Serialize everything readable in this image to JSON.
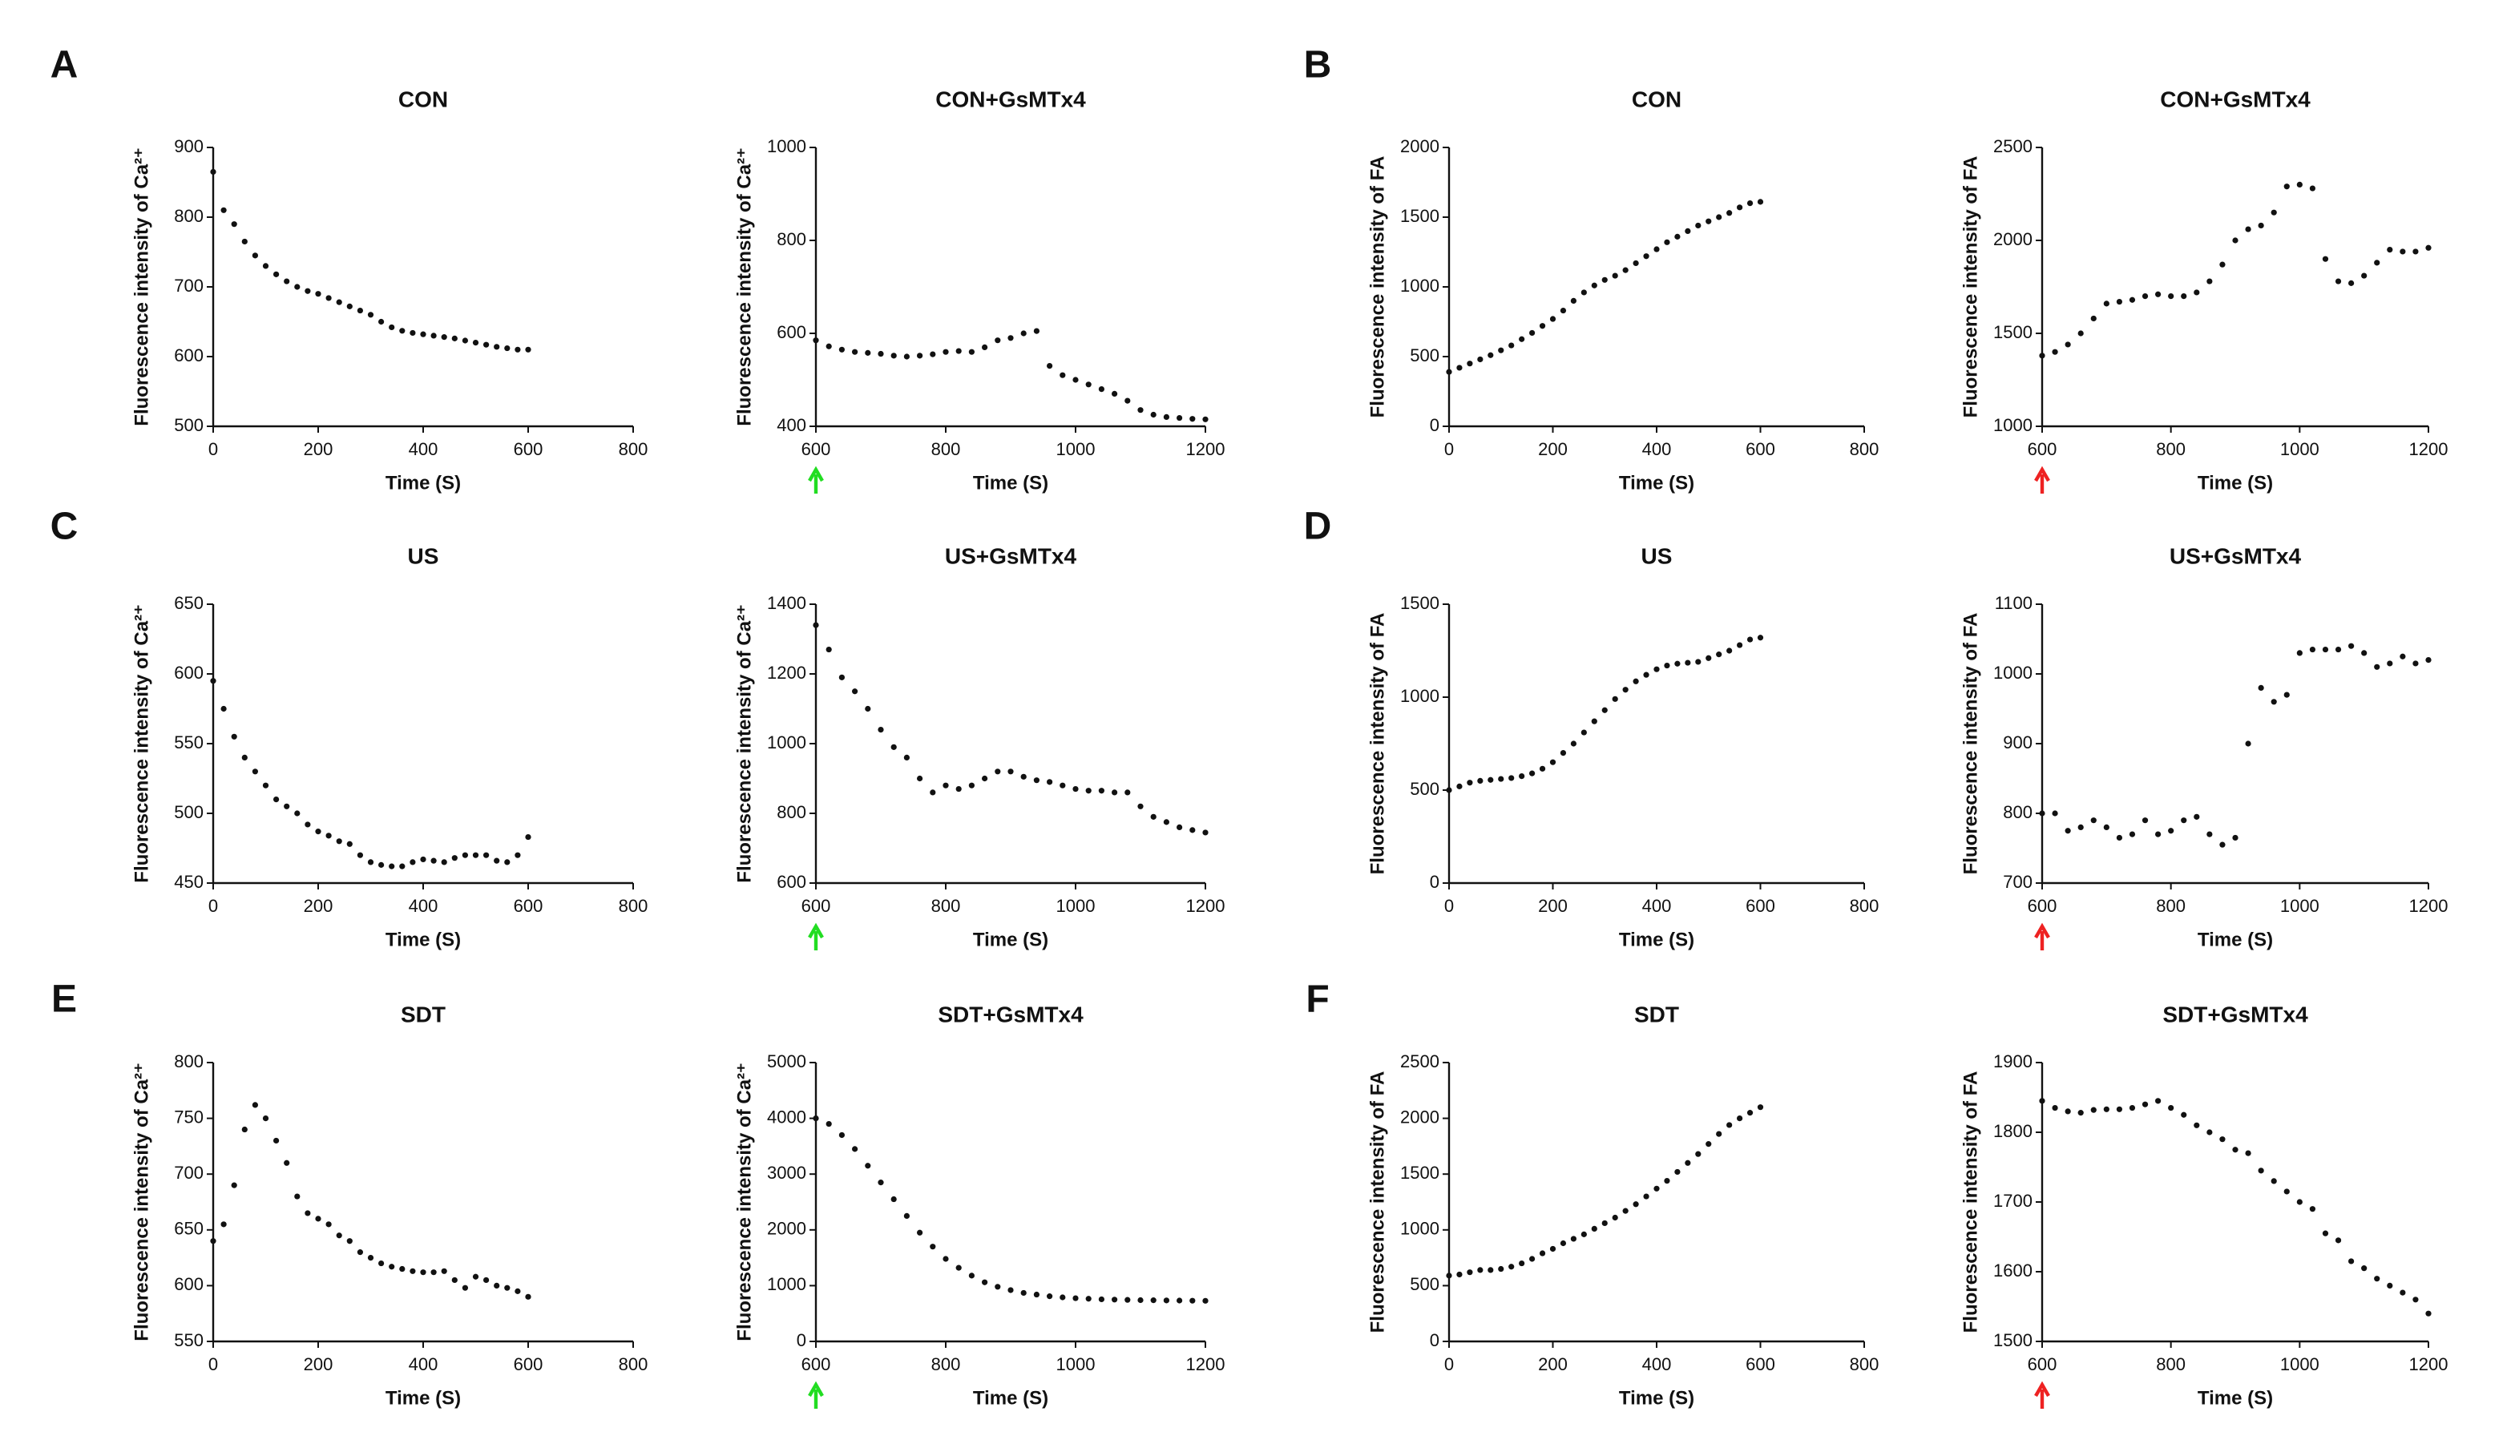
{
  "panel_labels": [
    "A",
    "B",
    "C",
    "D",
    "E",
    "F"
  ],
  "chart_data": [
    {
      "type": "scatter",
      "title": "CON",
      "xlabel": "Time (S)",
      "ylabel": "Fluorescence intensity of Ca²⁺",
      "color": "#111111",
      "xlim": [
        0,
        800
      ],
      "xticks": [
        0,
        200,
        400,
        600,
        800
      ],
      "ylim": [
        500,
        900
      ],
      "yticks": [
        500,
        600,
        700,
        800,
        900
      ],
      "x": [
        0,
        20,
        40,
        60,
        80,
        100,
        120,
        140,
        160,
        180,
        200,
        220,
        240,
        260,
        280,
        300,
        320,
        340,
        360,
        380,
        400,
        420,
        440,
        460,
        480,
        500,
        520,
        540,
        560,
        580,
        600
      ],
      "values": [
        865,
        810,
        790,
        765,
        745,
        730,
        718,
        708,
        700,
        694,
        690,
        684,
        678,
        672,
        666,
        660,
        650,
        642,
        637,
        634,
        632,
        630,
        628,
        626,
        623,
        620,
        617,
        614,
        612,
        610,
        610
      ]
    },
    {
      "type": "scatter",
      "title": "CON+GsMTx4",
      "xlabel": "Time (S)",
      "ylabel": "Fluorescence intensity of Ca²⁺",
      "color": "#111111",
      "arrow_color": "#22dd22",
      "xlim": [
        600,
        1200
      ],
      "xticks": [
        600,
        800,
        1000,
        1200
      ],
      "ylim": [
        400,
        1000
      ],
      "yticks": [
        400,
        600,
        800,
        1000
      ],
      "x": [
        600,
        620,
        640,
        660,
        680,
        700,
        720,
        740,
        760,
        780,
        800,
        820,
        840,
        860,
        880,
        900,
        920,
        940,
        960,
        980,
        1000,
        1020,
        1040,
        1060,
        1080,
        1100,
        1120,
        1140,
        1160,
        1180,
        1200
      ],
      "values": [
        585,
        572,
        565,
        560,
        558,
        556,
        552,
        550,
        552,
        555,
        560,
        562,
        560,
        570,
        585,
        590,
        600,
        605,
        530,
        510,
        500,
        490,
        480,
        470,
        455,
        435,
        425,
        420,
        418,
        416,
        415
      ]
    },
    {
      "type": "scatter",
      "title": "CON",
      "xlabel": "Time (S)",
      "ylabel": "Fluorescence intensity of FA",
      "color": "#111111",
      "xlim": [
        0,
        800
      ],
      "xticks": [
        0,
        200,
        400,
        600,
        800
      ],
      "ylim": [
        0,
        2000
      ],
      "yticks": [
        0,
        500,
        1000,
        1500,
        2000
      ],
      "x": [
        0,
        20,
        40,
        60,
        80,
        100,
        120,
        140,
        160,
        180,
        200,
        220,
        240,
        260,
        280,
        300,
        320,
        340,
        360,
        380,
        400,
        420,
        440,
        460,
        480,
        500,
        520,
        540,
        560,
        580,
        600
      ],
      "values": [
        390,
        420,
        450,
        480,
        510,
        545,
        580,
        625,
        670,
        720,
        770,
        830,
        900,
        960,
        1010,
        1050,
        1080,
        1120,
        1170,
        1220,
        1270,
        1320,
        1360,
        1400,
        1440,
        1470,
        1500,
        1530,
        1570,
        1600,
        1610
      ]
    },
    {
      "type": "scatter",
      "title": "CON+GsMTx4",
      "xlabel": "Time (S)",
      "ylabel": "Fluorescence intensity of FA",
      "color": "#111111",
      "arrow_color": "#ee2222",
      "xlim": [
        600,
        1200
      ],
      "xticks": [
        600,
        800,
        1000,
        1200
      ],
      "ylim": [
        1000,
        2500
      ],
      "yticks": [
        1000,
        1500,
        2000,
        2500
      ],
      "x": [
        600,
        620,
        640,
        660,
        680,
        700,
        720,
        740,
        760,
        780,
        800,
        820,
        840,
        860,
        880,
        900,
        920,
        940,
        960,
        980,
        1000,
        1020,
        1040,
        1060,
        1080,
        1100,
        1120,
        1140,
        1160,
        1180,
        1200
      ],
      "values": [
        1380,
        1400,
        1440,
        1500,
        1580,
        1660,
        1670,
        1680,
        1700,
        1710,
        1700,
        1700,
        1720,
        1780,
        1870,
        2000,
        2060,
        2080,
        2150,
        2290,
        2300,
        2280,
        1900,
        1780,
        1770,
        1810,
        1880,
        1950,
        1940,
        1940,
        1960
      ]
    },
    {
      "type": "scatter",
      "title": "US",
      "xlabel": "Time (S)",
      "ylabel": "Fluorescence intensity of Ca²⁺",
      "color": "#111111",
      "xlim": [
        0,
        800
      ],
      "xticks": [
        0,
        200,
        400,
        600,
        800
      ],
      "ylim": [
        450,
        650
      ],
      "yticks": [
        450,
        500,
        550,
        600,
        650
      ],
      "x": [
        0,
        20,
        40,
        60,
        80,
        100,
        120,
        140,
        160,
        180,
        200,
        220,
        240,
        260,
        280,
        300,
        320,
        340,
        360,
        380,
        400,
        420,
        440,
        460,
        480,
        500,
        520,
        540,
        560,
        580,
        600
      ],
      "values": [
        595,
        575,
        555,
        540,
        530,
        520,
        510,
        505,
        500,
        492,
        487,
        484,
        480,
        478,
        470,
        465,
        463,
        462,
        462,
        465,
        467,
        466,
        465,
        468,
        470,
        470,
        470,
        466,
        465,
        470,
        483
      ]
    },
    {
      "type": "scatter",
      "title": "US+GsMTx4",
      "xlabel": "Time (S)",
      "ylabel": "Fluorescence intensity of Ca²⁺",
      "color": "#111111",
      "arrow_color": "#22dd22",
      "xlim": [
        600,
        1200
      ],
      "xticks": [
        600,
        800,
        1000,
        1200
      ],
      "ylim": [
        600,
        1400
      ],
      "yticks": [
        600,
        800,
        1000,
        1200,
        1400
      ],
      "x": [
        600,
        620,
        640,
        660,
        680,
        700,
        720,
        740,
        760,
        780,
        800,
        820,
        840,
        860,
        880,
        900,
        920,
        940,
        960,
        980,
        1000,
        1020,
        1040,
        1060,
        1080,
        1100,
        1120,
        1140,
        1160,
        1180,
        1200
      ],
      "values": [
        1340,
        1270,
        1190,
        1150,
        1100,
        1040,
        990,
        960,
        900,
        860,
        880,
        870,
        880,
        900,
        920,
        920,
        905,
        895,
        890,
        880,
        870,
        865,
        865,
        860,
        860,
        820,
        790,
        775,
        760,
        752,
        745
      ]
    },
    {
      "type": "scatter",
      "title": "US",
      "xlabel": "Time (S)",
      "ylabel": "Fluorescence intensity of FA",
      "color": "#111111",
      "xlim": [
        0,
        800
      ],
      "xticks": [
        0,
        200,
        400,
        600,
        800
      ],
      "ylim": [
        0,
        1500
      ],
      "yticks": [
        0,
        500,
        1000,
        1500
      ],
      "x": [
        0,
        20,
        40,
        60,
        80,
        100,
        120,
        140,
        160,
        180,
        200,
        220,
        240,
        260,
        280,
        300,
        320,
        340,
        360,
        380,
        400,
        420,
        440,
        460,
        480,
        500,
        520,
        540,
        560,
        580,
        600
      ],
      "values": [
        500,
        520,
        540,
        550,
        555,
        560,
        565,
        575,
        590,
        615,
        650,
        700,
        750,
        810,
        870,
        930,
        990,
        1040,
        1085,
        1120,
        1150,
        1170,
        1180,
        1185,
        1190,
        1210,
        1230,
        1250,
        1280,
        1310,
        1320
      ]
    },
    {
      "type": "scatter",
      "title": "US+GsMTx4",
      "xlabel": "Time (S)",
      "ylabel": "Fluorescence intensity of FA",
      "color": "#111111",
      "arrow_color": "#ee2222",
      "xlim": [
        600,
        1200
      ],
      "xticks": [
        600,
        800,
        1000,
        1200
      ],
      "ylim": [
        700,
        1100
      ],
      "yticks": [
        700,
        800,
        900,
        1000,
        1100
      ],
      "x": [
        600,
        620,
        640,
        660,
        680,
        700,
        720,
        740,
        760,
        780,
        800,
        820,
        840,
        860,
        880,
        900,
        920,
        940,
        960,
        980,
        1000,
        1020,
        1040,
        1060,
        1080,
        1100,
        1120,
        1140,
        1160,
        1180,
        1200
      ],
      "values": [
        800,
        800,
        775,
        780,
        790,
        780,
        765,
        770,
        790,
        770,
        775,
        790,
        795,
        770,
        755,
        765,
        900,
        980,
        960,
        970,
        1030,
        1035,
        1035,
        1035,
        1040,
        1030,
        1010,
        1015,
        1025,
        1015,
        1020
      ]
    },
    {
      "type": "scatter",
      "title": "SDT",
      "xlabel": "Time (S)",
      "ylabel": "Fluorescence intensity of Ca²⁺",
      "color": "#111111",
      "xlim": [
        0,
        800
      ],
      "xticks": [
        0,
        200,
        400,
        600,
        800
      ],
      "ylim": [
        550,
        800
      ],
      "yticks": [
        550,
        600,
        650,
        700,
        750,
        800
      ],
      "x": [
        0,
        20,
        40,
        60,
        80,
        100,
        120,
        140,
        160,
        180,
        200,
        220,
        240,
        260,
        280,
        300,
        320,
        340,
        360,
        380,
        400,
        420,
        440,
        460,
        480,
        500,
        520,
        540,
        560,
        580,
        600
      ],
      "values": [
        640,
        655,
        690,
        740,
        762,
        750,
        730,
        710,
        680,
        665,
        660,
        655,
        645,
        640,
        630,
        625,
        620,
        617,
        615,
        613,
        612,
        612,
        613,
        605,
        598,
        608,
        605,
        600,
        598,
        595,
        590
      ]
    },
    {
      "type": "scatter",
      "title": "SDT+GsMTx4",
      "xlabel": "Time (S)",
      "ylabel": "Fluorescence intensity of Ca²⁺",
      "color": "#111111",
      "arrow_color": "#22dd22",
      "xlim": [
        600,
        1200
      ],
      "xticks": [
        600,
        800,
        1000,
        1200
      ],
      "ylim": [
        0,
        5000
      ],
      "yticks": [
        0,
        1000,
        2000,
        3000,
        4000,
        5000
      ],
      "x": [
        600,
        620,
        640,
        660,
        680,
        700,
        720,
        740,
        760,
        780,
        800,
        820,
        840,
        860,
        880,
        900,
        920,
        940,
        960,
        980,
        1000,
        1020,
        1040,
        1060,
        1080,
        1100,
        1120,
        1140,
        1160,
        1180,
        1200
      ],
      "values": [
        4000,
        3900,
        3700,
        3450,
        3150,
        2850,
        2550,
        2250,
        1950,
        1700,
        1480,
        1320,
        1180,
        1060,
        980,
        920,
        870,
        840,
        810,
        790,
        775,
        765,
        755,
        750,
        745,
        740,
        738,
        735,
        733,
        730,
        728
      ]
    },
    {
      "type": "scatter",
      "title": "SDT",
      "xlabel": "Time (S)",
      "ylabel": "Fluorescence intensity of FA",
      "color": "#111111",
      "xlim": [
        0,
        800
      ],
      "xticks": [
        0,
        200,
        400,
        600,
        800
      ],
      "ylim": [
        0,
        2500
      ],
      "yticks": [
        0,
        500,
        1000,
        1500,
        2000,
        2500
      ],
      "x": [
        0,
        20,
        40,
        60,
        80,
        100,
        120,
        140,
        160,
        180,
        200,
        220,
        240,
        260,
        280,
        300,
        320,
        340,
        360,
        380,
        400,
        420,
        440,
        460,
        480,
        500,
        520,
        540,
        560,
        580,
        600
      ],
      "values": [
        590,
        600,
        620,
        640,
        640,
        650,
        670,
        700,
        740,
        790,
        830,
        880,
        920,
        960,
        1010,
        1060,
        1110,
        1170,
        1230,
        1300,
        1370,
        1440,
        1520,
        1600,
        1680,
        1770,
        1860,
        1940,
        2000,
        2050,
        2100
      ]
    },
    {
      "type": "scatter",
      "title": "SDT+GsMTx4",
      "xlabel": "Time (S)",
      "ylabel": "Fluorescence intensity of FA",
      "color": "#111111",
      "arrow_color": "#ee2222",
      "xlim": [
        600,
        1200
      ],
      "xticks": [
        600,
        800,
        1000,
        1200
      ],
      "ylim": [
        1500,
        1900
      ],
      "yticks": [
        1500,
        1600,
        1700,
        1800,
        1900
      ],
      "x": [
        600,
        620,
        640,
        660,
        680,
        700,
        720,
        740,
        760,
        780,
        800,
        820,
        840,
        860,
        880,
        900,
        920,
        940,
        960,
        980,
        1000,
        1020,
        1040,
        1060,
        1080,
        1100,
        1120,
        1140,
        1160,
        1180,
        1200
      ],
      "values": [
        1845,
        1835,
        1830,
        1828,
        1832,
        1833,
        1833,
        1835,
        1840,
        1845,
        1835,
        1825,
        1810,
        1800,
        1790,
        1775,
        1770,
        1745,
        1730,
        1715,
        1700,
        1690,
        1655,
        1645,
        1615,
        1605,
        1590,
        1580,
        1570,
        1560,
        1540
      ]
    }
  ]
}
